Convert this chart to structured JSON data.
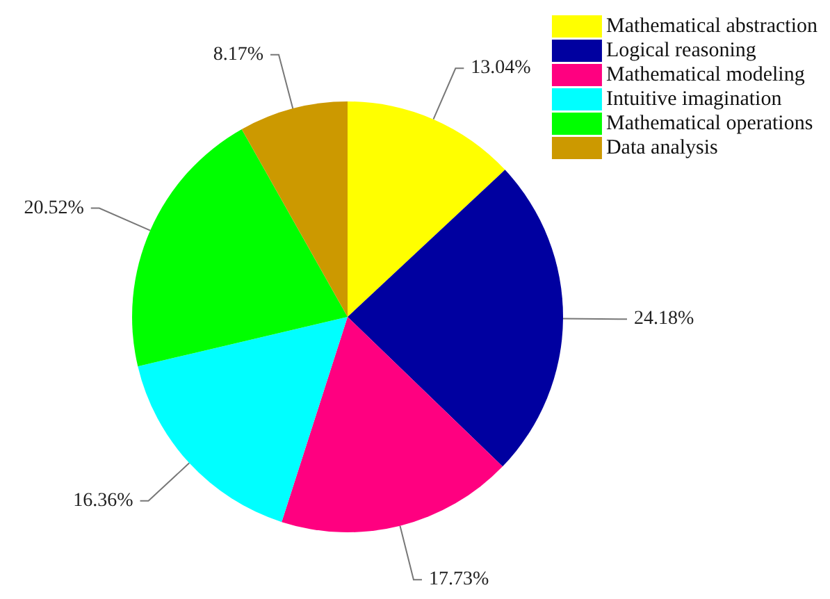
{
  "chart_data": {
    "type": "pie",
    "categories": [
      "Mathematical abstraction",
      "Logical reasoning",
      "Mathematical modeling",
      "Intuitive imagination",
      "Mathematical operations",
      "Data analysis"
    ],
    "values": [
      13.04,
      24.18,
      17.73,
      16.36,
      20.52,
      8.17
    ],
    "value_labels": [
      "13.04%",
      "24.18%",
      "17.73%",
      "16.36%",
      "20.52%",
      "8.17%"
    ],
    "colors": [
      "#ffff00",
      "#0000a0",
      "#ff0080",
      "#00ffff",
      "#00ff00",
      "#cc9900"
    ],
    "legend": "top right"
  }
}
